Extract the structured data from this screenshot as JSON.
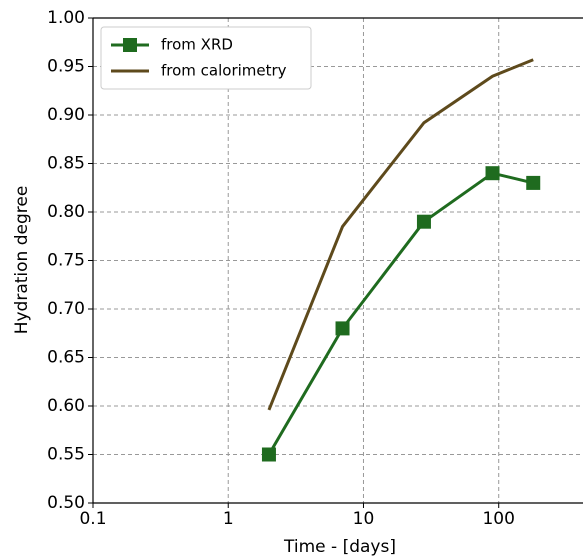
{
  "chart_data": {
    "type": "line",
    "x_label": "Time - [days]",
    "y_label": "Hydration degree",
    "x_log": true,
    "grid": true,
    "legend": "upper left",
    "xlim": [
      0.1,
      420
    ],
    "ylim": [
      0.5,
      1.0
    ],
    "xticks": [
      0.1,
      1,
      10,
      100
    ],
    "yticks": [
      {
        "value": 0.5,
        "label": "0.50"
      },
      {
        "value": 0.55,
        "label": "0.55"
      },
      {
        "value": 0.6,
        "label": "0.60"
      },
      {
        "value": 0.65,
        "label": "0.65"
      },
      {
        "value": 0.7,
        "label": "0.70"
      },
      {
        "value": 0.75,
        "label": "0.75"
      },
      {
        "value": 0.8,
        "label": "0.80"
      },
      {
        "value": 0.85,
        "label": "0.85"
      },
      {
        "value": 0.9,
        "label": "0.90"
      },
      {
        "value": 0.95,
        "label": "0.95"
      },
      {
        "value": 1.0,
        "label": "1.00"
      }
    ],
    "series": [
      {
        "name": "from XRD",
        "color": "#1f6b1f",
        "marker": "square",
        "x": [
          2,
          7,
          28,
          90,
          180
        ],
        "values": [
          0.55,
          0.68,
          0.79,
          0.84,
          0.83
        ]
      },
      {
        "name": "from calorimetry",
        "color": "#5e4a1c",
        "x": [
          2,
          7,
          28,
          90,
          180
        ],
        "values": [
          0.596,
          0.785,
          0.892,
          0.94,
          0.957
        ]
      }
    ]
  }
}
